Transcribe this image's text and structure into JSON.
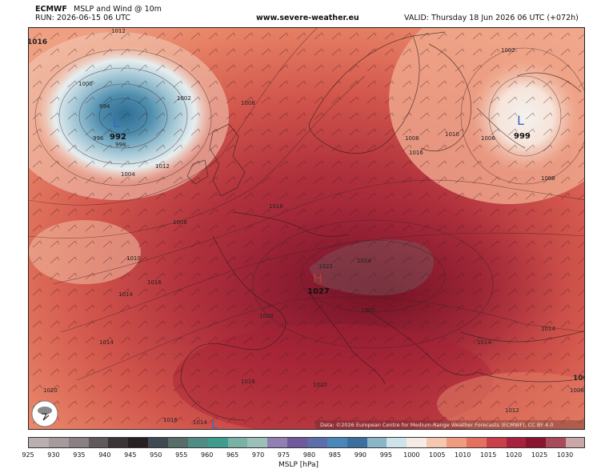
{
  "header": {
    "model": "ECMWF",
    "product": "MSLP and Wind @ 10m",
    "run": "RUN: 2026-06-15 06 UTC",
    "site": "www.severe-weather.eu",
    "valid": "VALID: Thursday 18 Jun 2026 06 UTC (+072h)"
  },
  "map": {
    "attribution": "Data: ©2026 European Centre for Medium-Range Weather Forecasts (ECMWF), CC BY 4.0",
    "pressure_centers": [
      {
        "type": "L",
        "value": "992",
        "color": "#3a66c4"
      },
      {
        "type": "L",
        "value": "999",
        "color": "#3a66c4"
      },
      {
        "type": "H",
        "value": "1027",
        "color": "#c0392b"
      },
      {
        "type": "L",
        "value": "",
        "color": "#3a66c4"
      }
    ],
    "isobar_labels": [
      "1012",
      "1016",
      "1000",
      "994",
      "1002",
      "1008",
      "996",
      "998",
      "1004",
      "1006",
      "1012",
      "1010",
      "1016",
      "1006",
      "1002",
      "1008",
      "1018",
      "1022",
      "1024",
      "1010",
      "1016",
      "1014",
      "1020",
      "1020",
      "1016",
      "1020",
      "1016",
      "1014",
      "1020",
      "1014",
      "1012",
      "1014",
      "1008",
      "1008",
      "100"
    ]
  },
  "legend": {
    "title": "MSLP [hPa]",
    "ticks": [
      "925",
      "930",
      "935",
      "940",
      "945",
      "950",
      "955",
      "960",
      "965",
      "970",
      "975",
      "980",
      "985",
      "990",
      "995",
      "1000",
      "1005",
      "1010",
      "1015",
      "1020",
      "1025",
      "1030"
    ],
    "colors": [
      "#b9aeb0",
      "#a59a9c",
      "#8a7f82",
      "#5f585c",
      "#3b3437",
      "#262022",
      "#404a52",
      "#566d6a",
      "#4f8d84",
      "#3f9c8f",
      "#7bb0a4",
      "#9cbfb8",
      "#8f7fb2",
      "#6f5a9c",
      "#5e6eaa",
      "#4a86b8",
      "#3b6f9e",
      "#8bb6c9",
      "#cfe3ea",
      "#f6ece6",
      "#f5c7b0",
      "#ef9b80",
      "#e2725f",
      "#c9404a",
      "#a6223d",
      "#8a1530",
      "#a84a5a",
      "#c9a6a8"
    ]
  }
}
